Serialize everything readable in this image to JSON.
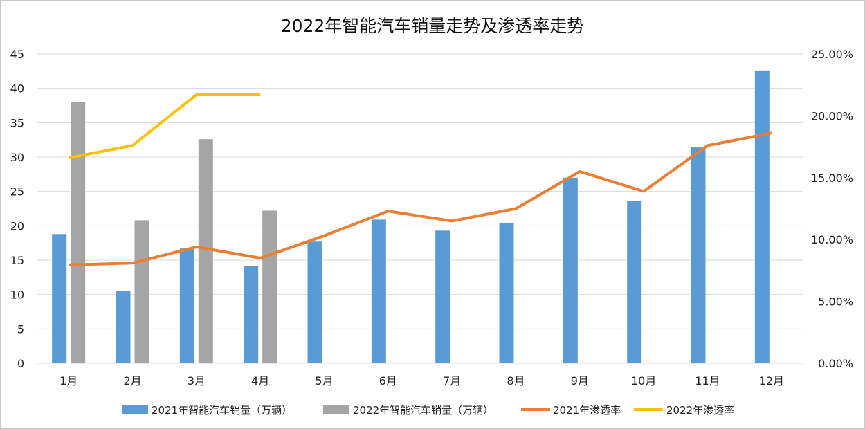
{
  "chart_data": {
    "type": "bar",
    "title": "2022年智能汽车销量走势及渗透率走势",
    "categories": [
      "1月",
      "2月",
      "3月",
      "4月",
      "5月",
      "6月",
      "7月",
      "8月",
      "9月",
      "10月",
      "11月",
      "12月"
    ],
    "y_left": {
      "min": 0,
      "max": 45,
      "ticks": [
        "0",
        "5",
        "10",
        "15",
        "20",
        "25",
        "30",
        "35",
        "40",
        "45"
      ]
    },
    "y_right": {
      "min": 0,
      "max": 0.25,
      "ticks": [
        "0.00%",
        "5.00%",
        "10.00%",
        "15.00%",
        "20.00%",
        "25.00%"
      ]
    },
    "grid": true,
    "legend_position": "bottom",
    "series": [
      {
        "name": "2021年智能汽车销量（万辆）",
        "kind": "bar",
        "axis": "left",
        "color": "#5B9BD5",
        "values": [
          18.8,
          10.5,
          16.7,
          14.1,
          17.7,
          20.9,
          19.3,
          20.4,
          27.0,
          23.6,
          31.4,
          42.6
        ]
      },
      {
        "name": "2022年智能汽车销量（万辆）",
        "kind": "bar",
        "axis": "left",
        "color": "#A5A5A5",
        "values": [
          38.0,
          20.8,
          32.6,
          22.2,
          null,
          null,
          null,
          null,
          null,
          null,
          null,
          null
        ]
      },
      {
        "name": "2021年渗透率",
        "kind": "line",
        "axis": "right",
        "color": "#ED7D31",
        "values": [
          0.0795,
          0.081,
          0.094,
          0.085,
          0.103,
          0.123,
          0.115,
          0.125,
          0.155,
          0.139,
          0.176,
          0.186
        ]
      },
      {
        "name": "2022年渗透率",
        "kind": "line",
        "axis": "right",
        "color": "#FFC000",
        "values": [
          0.166,
          0.176,
          0.217,
          0.217,
          null,
          null,
          null,
          null,
          null,
          null,
          null,
          null
        ]
      }
    ]
  }
}
